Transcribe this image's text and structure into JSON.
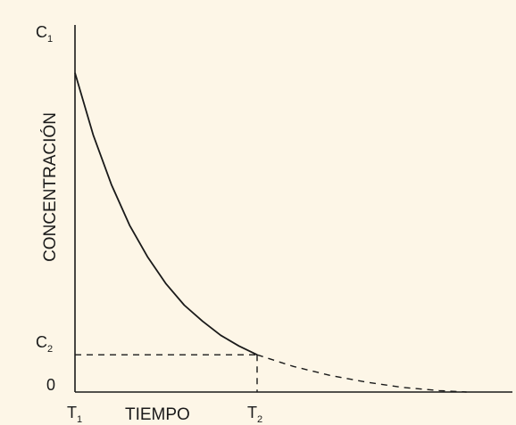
{
  "chart_data": {
    "type": "line",
    "title": "",
    "xlabel": "TIEMPO",
    "ylabel": "CONCENTRACIÓN",
    "x_ticks": [
      {
        "main": "T",
        "sub": "1"
      },
      {
        "main": "T",
        "sub": "2"
      }
    ],
    "y_ticks": [
      {
        "main": "C",
        "sub": "1"
      },
      {
        "main": "C",
        "sub": "2"
      },
      {
        "main": "0",
        "sub": ""
      }
    ],
    "axis_units": "relative (x: T1 = 0, T2 = 1; y: 0 to C1 = 1)",
    "xlim": [
      0,
      2.2
    ],
    "ylim": [
      0,
      1.1
    ],
    "grid": false,
    "series": [
      {
        "style": "solid",
        "x": [
          0,
          0.1,
          0.2,
          0.3,
          0.4,
          0.5,
          0.6,
          0.7,
          0.8,
          0.9,
          1.0
        ],
        "y": [
          0.9,
          0.725,
          0.585,
          0.47,
          0.38,
          0.305,
          0.245,
          0.2,
          0.16,
          0.13,
          0.105
        ]
      },
      {
        "style": "dashed",
        "x": [
          1.0,
          1.2,
          1.4,
          1.6,
          1.8,
          2.0,
          2.15
        ],
        "y": [
          0.105,
          0.072,
          0.047,
          0.028,
          0.013,
          0.004,
          0.0
        ]
      }
    ],
    "reference_lines": [
      {
        "style": "dashed",
        "x": [
          0,
          1.0
        ],
        "y": [
          0.105,
          0.105
        ]
      },
      {
        "style": "dashed",
        "x": [
          1.0,
          1.0
        ],
        "y": [
          0.105,
          0
        ]
      }
    ],
    "colors": {
      "background": "#fdf6e7",
      "line": "#1a1a1a"
    }
  }
}
